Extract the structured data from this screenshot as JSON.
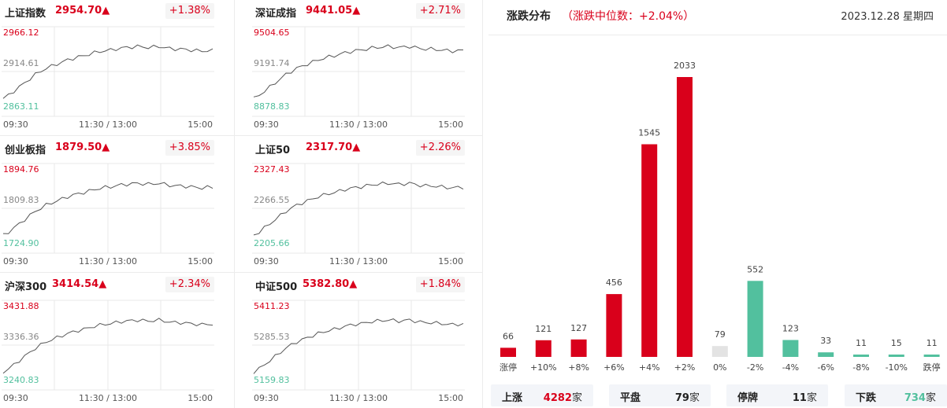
{
  "indices": [
    {
      "name": "上证指数",
      "price": "2954.70▲",
      "change_pct": "+1.38%",
      "y_high": "2966.12",
      "y_mid": "2914.61",
      "y_low": "2863.11",
      "x_labels": [
        "09:30",
        "11:30 / 13:00",
        "15:00"
      ]
    },
    {
      "name": "深证成指",
      "price": "9441.05▲",
      "change_pct": "+2.71%",
      "y_high": "9504.65",
      "y_mid": "9191.74",
      "y_low": "8878.83",
      "x_labels": [
        "09:30",
        "11:30 / 13:00",
        "15:00"
      ]
    },
    {
      "name": "创业板指",
      "price": "1879.50▲",
      "change_pct": "+3.85%",
      "y_high": "1894.76",
      "y_mid": "1809.83",
      "y_low": "1724.90",
      "x_labels": [
        "09:30",
        "11:30 / 13:00",
        "15:00"
      ]
    },
    {
      "name": "上证50",
      "price": "2317.70▲",
      "change_pct": "+2.26%",
      "y_high": "2327.43",
      "y_mid": "2266.55",
      "y_low": "2205.66",
      "x_labels": [
        "09:30",
        "11:30 / 13:00",
        "15:00"
      ]
    },
    {
      "name": "沪深300",
      "price": "3414.54▲",
      "change_pct": "+2.34%",
      "y_high": "3431.88",
      "y_mid": "3336.36",
      "y_low": "3240.83",
      "x_labels": [
        "09:30",
        "11:30 / 13:00",
        "15:00"
      ]
    },
    {
      "name": "中证500",
      "price": "5382.80▲",
      "change_pct": "+1.84%",
      "y_high": "5411.23",
      "y_mid": "5285.53",
      "y_low": "5159.83",
      "x_labels": [
        "09:30",
        "11:30 / 13:00",
        "15:00"
      ]
    }
  ],
  "distribution": {
    "title": "涨跌分布",
    "median_text": "（涨跌中位数：+2.04%）",
    "date": "2023.12.28 星期四"
  },
  "colors": {
    "up": "#d9001b",
    "down": "#52c09e",
    "flat": "#e3e3e3",
    "line": "#555555"
  },
  "chart_data": {
    "type": "bar",
    "categories": [
      "涨停",
      "+10%",
      "+8%",
      "+6%",
      "+4%",
      "+2%",
      "0%",
      "-2%",
      "-4%",
      "-6%",
      "-8%",
      "-10%",
      "跌停"
    ],
    "values": [
      66,
      121,
      127,
      456,
      1545,
      2033,
      79,
      552,
      123,
      33,
      11,
      15,
      11
    ],
    "kinds": [
      "up",
      "up",
      "up",
      "up",
      "up",
      "up",
      "flat",
      "down",
      "down",
      "down",
      "down",
      "down",
      "down"
    ]
  },
  "summary": [
    {
      "label": "上涨",
      "value": "4282",
      "unit": "家",
      "color": "#d9001b"
    },
    {
      "label": "平盘",
      "value": "79",
      "unit": "家",
      "color": "#222222"
    },
    {
      "label": "停牌",
      "value": "11",
      "unit": "家",
      "color": "#222222"
    },
    {
      "label": "下跌",
      "value": "734",
      "unit": "家",
      "color": "#52c09e"
    }
  ]
}
